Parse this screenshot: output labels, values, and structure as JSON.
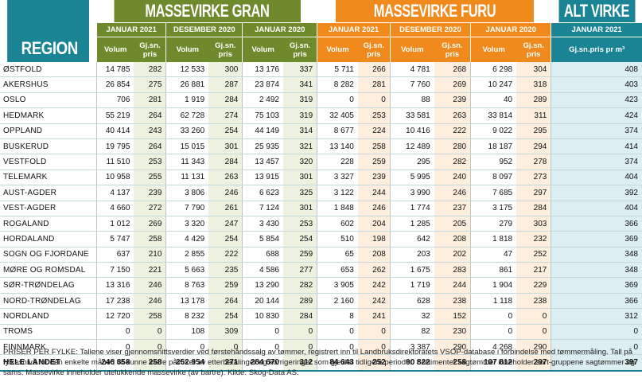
{
  "headers": {
    "gran": "MASSEVIRKE GRAN",
    "furu": "MASSEVIRKE FURU",
    "alt": "ALT VIRKE",
    "periods": [
      "JANUAR 2021",
      "DESEMBER 2020",
      "JANUAR 2020"
    ],
    "alt_period": "JANUAR 2021",
    "region": "REGION",
    "volum": "Volum",
    "pris": "Gj.sn. pris",
    "alt_sub": "Gj.sn.pris pr m³"
  },
  "chart_data": {
    "type": "table",
    "columns": [
      "Region",
      "Gran Jan 2021 Volum",
      "Gran Jan 2021 Gj.sn. pris",
      "Gran Des 2020 Volum",
      "Gran Des 2020 Gj.sn. pris",
      "Gran Jan 2020 Volum",
      "Gran Jan 2020 Gj.sn. pris",
      "Furu Jan 2021 Volum",
      "Furu Jan 2021 Gj.sn. pris",
      "Furu Des 2020 Volum",
      "Furu Des 2020 Gj.sn. pris",
      "Furu Jan 2020 Volum",
      "Furu Jan 2020 Gj.sn. pris",
      "Alt virke Jan 2021 Gj.sn.pris pr m³"
    ],
    "rows": [
      [
        "ØSTFOLD",
        "14 785",
        "282",
        "12 533",
        "300",
        "13 176",
        "337",
        "5 711",
        "266",
        "4 781",
        "268",
        "6 298",
        "304",
        "408"
      ],
      [
        "AKERSHUS",
        "26 854",
        "275",
        "26 881",
        "287",
        "23 874",
        "341",
        "8 282",
        "281",
        "7 760",
        "269",
        "10 247",
        "318",
        "403"
      ],
      [
        "OSLO",
        "706",
        "281",
        "1 919",
        "284",
        "2 492",
        "319",
        "0",
        "0",
        "88",
        "239",
        "40",
        "289",
        "423"
      ],
      [
        "HEDMARK",
        "55 219",
        "264",
        "62 728",
        "274",
        "75 103",
        "319",
        "32 405",
        "253",
        "33 581",
        "263",
        "33 814",
        "311",
        "424"
      ],
      [
        "OPPLAND",
        "40 414",
        "243",
        "33 260",
        "254",
        "44 149",
        "314",
        "8 677",
        "224",
        "10 416",
        "222",
        "9 022",
        "295",
        "374"
      ],
      [
        "BUSKERUD",
        "19 795",
        "264",
        "15 015",
        "301",
        "25 935",
        "321",
        "13 140",
        "258",
        "12 489",
        "280",
        "18 187",
        "294",
        "414"
      ],
      [
        "VESTFOLD",
        "11 510",
        "253",
        "11 343",
        "284",
        "13 457",
        "320",
        "228",
        "259",
        "295",
        "282",
        "952",
        "278",
        "374"
      ],
      [
        "TELEMARK",
        "10 958",
        "255",
        "11 131",
        "263",
        "13 915",
        "301",
        "3 327",
        "239",
        "5 995",
        "240",
        "8 097",
        "273",
        "404"
      ],
      [
        "AUST-AGDER",
        "4 137",
        "239",
        "3 806",
        "246",
        "6 623",
        "325",
        "3 122",
        "244",
        "3 990",
        "246",
        "7 685",
        "297",
        "392"
      ],
      [
        "VEST-AGDER",
        "4 660",
        "272",
        "7 790",
        "261",
        "7 124",
        "301",
        "1 848",
        "246",
        "1 774",
        "237",
        "3 175",
        "284",
        "404"
      ],
      [
        "ROGALAND",
        "1 012",
        "269",
        "3 320",
        "247",
        "3 430",
        "253",
        "602",
        "204",
        "1 285",
        "205",
        "279",
        "303",
        "366"
      ],
      [
        "HORDALAND",
        "5 747",
        "258",
        "4 429",
        "254",
        "5 854",
        "254",
        "510",
        "198",
        "642",
        "208",
        "1 818",
        "232",
        "369"
      ],
      [
        "SOGN OG FJORDANE",
        "637",
        "210",
        "2 855",
        "222",
        "688",
        "259",
        "65",
        "208",
        "203",
        "202",
        "47",
        "252",
        "348"
      ],
      [
        "MØRE OG ROMSDAL",
        "7 150",
        "221",
        "5 663",
        "235",
        "4 586",
        "277",
        "653",
        "262",
        "1 675",
        "283",
        "861",
        "217",
        "348"
      ],
      [
        "SØR-TRØNDELAG",
        "13 316",
        "246",
        "8 763",
        "259",
        "13 290",
        "282",
        "3 905",
        "242",
        "1 719",
        "244",
        "1 904",
        "229",
        "369"
      ],
      [
        "NORD-TRØNDELAG",
        "17 238",
        "246",
        "13 178",
        "264",
        "20 144",
        "289",
        "2 160",
        "242",
        "628",
        "238",
        "1 118",
        "238",
        "366"
      ],
      [
        "NORDLAND",
        "12 720",
        "258",
        "8 232",
        "254",
        "10 830",
        "284",
        "8",
        "241",
        "32",
        "152",
        "0",
        "0",
        "312"
      ],
      [
        "TROMS",
        "0",
        "0",
        "108",
        "309",
        "0",
        "0",
        "0",
        "0",
        "82",
        "230",
        "0",
        "0",
        "0"
      ],
      [
        "FINNMARK",
        "0",
        "0",
        "0",
        "0",
        "0",
        "0",
        "0",
        "0",
        "3 387",
        "290",
        "4 268",
        "290",
        "0"
      ],
      [
        "HELE LANDET",
        "246 858",
        "258",
        "252 954",
        "271",
        "284 670",
        "312",
        "84 643",
        "252",
        "90 822",
        "258",
        "107 812",
        "297",
        "397"
      ]
    ]
  },
  "footnote": "PRISER PER FYLKE: Tallene viser gjennomsnittsverdier ved førstehåndssalg av tømmer, registrert inn til Landbruksdirektoratets VSOP-database i forbindelse med tømmermåling. Tall på fylkesnivå for den enkelte måned vil kunne være påvirket av etterbetalinger og korrigeringer som gjelder tidligere perioder. Sortimentet sagtømmer inneholder sort-gruppene sagtømmer og sams. Massevirke inneholder utelukkende massevirke (av bartre). Kilde: Skog-Data AS."
}
